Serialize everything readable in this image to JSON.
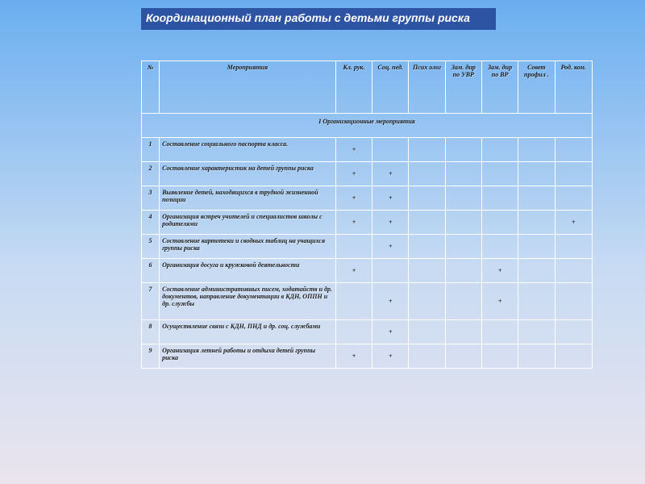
{
  "title": "Координационный план работы с детьми группы риска",
  "columns": [
    "№",
    "Мероприятия",
    "Кл. рук.",
    "Соц. пед.",
    "Псих олог",
    "Зам. дир по УВР",
    "Зам. дир по ВР",
    "Совет профил .",
    "Род. ком."
  ],
  "section_title": "I Организационные мероприятия",
  "rows": [
    {
      "n": "1",
      "text": "Составление социального паспорта класса.",
      "marks": [
        "+",
        "",
        "",
        "",
        "",
        "",
        ""
      ]
    },
    {
      "n": "2",
      "text": "Составление характеристик на детей группы риска",
      "marks": [
        "+",
        "+",
        "",
        "",
        "",
        "",
        ""
      ]
    },
    {
      "n": "3",
      "text": "Выявление детей, находящихся в трудной жизненной позиции",
      "marks": [
        "+",
        "+",
        "",
        "",
        "",
        "",
        ""
      ]
    },
    {
      "n": "4",
      "text": "Организация встреч учителей и специалистов школы с родителями",
      "marks": [
        "+",
        "+",
        "",
        "",
        "",
        "",
        "+"
      ]
    },
    {
      "n": "5",
      "text": "Составление картотеки и сводных таблиц на учащихся группы риска",
      "marks": [
        "",
        "+",
        "",
        "",
        "",
        "",
        ""
      ]
    },
    {
      "n": "6",
      "text": "Организация досуга и кружковой деятельности",
      "marks": [
        "+",
        "",
        "",
        "",
        "+",
        "",
        ""
      ]
    },
    {
      "n": "7",
      "text": "Составление административных писем, ходатайств и др. документов, направление документации в КДН, ОППН и др. службы",
      "marks": [
        "",
        "+",
        "",
        "",
        "+",
        "",
        ""
      ]
    },
    {
      "n": "8",
      "text": "Осуществление связи с КДН, ПНД и др. соц. службами",
      "marks": [
        "",
        "+",
        "",
        "",
        "",
        "",
        ""
      ]
    },
    {
      "n": "9",
      "text": "Организация летней работы и отдыха детей группы риска",
      "marks": [
        "+",
        "+",
        "",
        "",
        "",
        "",
        ""
      ]
    }
  ],
  "styles": {
    "title_bg": "#2d53a3",
    "title_color": "#ffffff",
    "border_color": "#ffffff",
    "font_size_cell": 8,
    "font_size_title": 14
  }
}
